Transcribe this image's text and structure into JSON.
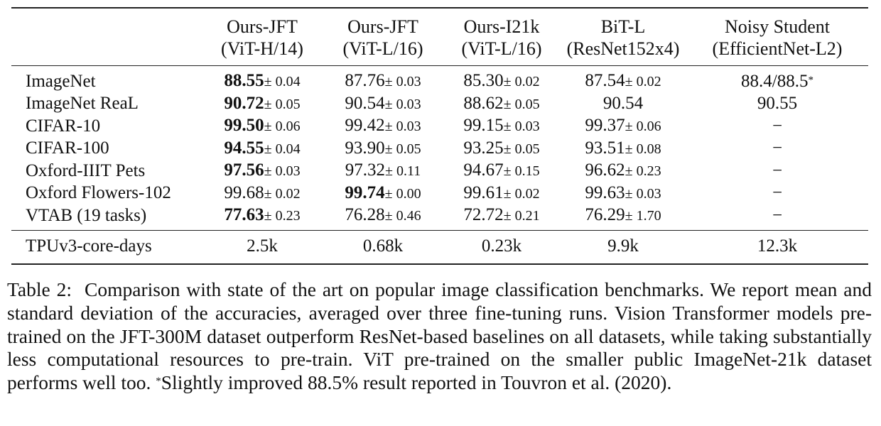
{
  "table": {
    "columns": [
      {
        "line1": "Ours-JFT",
        "line2": "(ViT-H/14)"
      },
      {
        "line1": "Ours-JFT",
        "line2": "(ViT-L/16)"
      },
      {
        "line1": "Ours-I21k",
        "line2": "(ViT-L/16)"
      },
      {
        "line1": "BiT-L",
        "line2": "(ResNet152x4)"
      },
      {
        "line1": "Noisy Student",
        "line2": "(EfficientNet-L2)"
      }
    ],
    "rows": [
      {
        "label": "ImageNet",
        "cells": [
          {
            "mean": "88.55",
            "std": "± 0.04",
            "bold": true
          },
          {
            "mean": "87.76",
            "std": "± 0.03"
          },
          {
            "mean": "85.30",
            "std": "± 0.02"
          },
          {
            "mean": "87.54",
            "std": "± 0.02"
          },
          {
            "mean": "88.4/88.5",
            "sup": "*"
          }
        ]
      },
      {
        "label": "ImageNet ReaL",
        "cells": [
          {
            "mean": "90.72",
            "std": "± 0.05",
            "bold": true
          },
          {
            "mean": "90.54",
            "std": "± 0.03"
          },
          {
            "mean": "88.62",
            "std": "± 0.05"
          },
          {
            "mean": "90.54"
          },
          {
            "mean": "90.55"
          }
        ]
      },
      {
        "label": "CIFAR-10",
        "cells": [
          {
            "mean": "99.50",
            "std": "± 0.06",
            "bold": true
          },
          {
            "mean": "99.42",
            "std": "± 0.03"
          },
          {
            "mean": "99.15",
            "std": "± 0.03"
          },
          {
            "mean": "99.37",
            "std": "± 0.06"
          },
          {
            "mean": "−"
          }
        ]
      },
      {
        "label": "CIFAR-100",
        "cells": [
          {
            "mean": "94.55",
            "std": "± 0.04",
            "bold": true
          },
          {
            "mean": "93.90",
            "std": "± 0.05"
          },
          {
            "mean": "93.25",
            "std": "± 0.05"
          },
          {
            "mean": "93.51",
            "std": "± 0.08"
          },
          {
            "mean": "−"
          }
        ]
      },
      {
        "label": "Oxford-IIIT Pets",
        "cells": [
          {
            "mean": "97.56",
            "std": "± 0.03",
            "bold": true
          },
          {
            "mean": "97.32",
            "std": "± 0.11"
          },
          {
            "mean": "94.67",
            "std": "± 0.15"
          },
          {
            "mean": "96.62",
            "std": "± 0.23"
          },
          {
            "mean": "−"
          }
        ]
      },
      {
        "label": "Oxford Flowers-102",
        "cells": [
          {
            "mean": "99.68",
            "std": "± 0.02"
          },
          {
            "mean": "99.74",
            "std": "± 0.00",
            "bold": true
          },
          {
            "mean": "99.61",
            "std": "± 0.02"
          },
          {
            "mean": "99.63",
            "std": "± 0.03"
          },
          {
            "mean": "−"
          }
        ]
      },
      {
        "label": "VTAB (19 tasks)",
        "cells": [
          {
            "mean": "77.63",
            "std": "± 0.23",
            "bold": true
          },
          {
            "mean": "76.28",
            "std": "± 0.46"
          },
          {
            "mean": "72.72",
            "std": "± 0.21"
          },
          {
            "mean": "76.29",
            "std": "± 1.70"
          },
          {
            "mean": "−"
          }
        ]
      }
    ],
    "footer": {
      "label": "TPUv3-core-days",
      "cells": [
        "2.5k",
        "0.68k",
        "0.23k",
        "9.9k",
        "12.3k"
      ]
    }
  },
  "caption": {
    "label": "Table 2:",
    "text": "Comparison with state of the art on popular image classification benchmarks. We report mean and standard deviation of the accuracies, averaged over three fine-tuning runs. Vision Transformer models pre-trained on the JFT-300M dataset outperform ResNet-based baselines on all datasets, while taking substantially less computational resources to pre-train. ViT pre-trained on the smaller public ImageNet-21k dataset performs well too. ",
    "footnote_mark": "*",
    "footnote_text": "Slightly improved 88.5% result reported in Touvron et al. (2020)."
  }
}
